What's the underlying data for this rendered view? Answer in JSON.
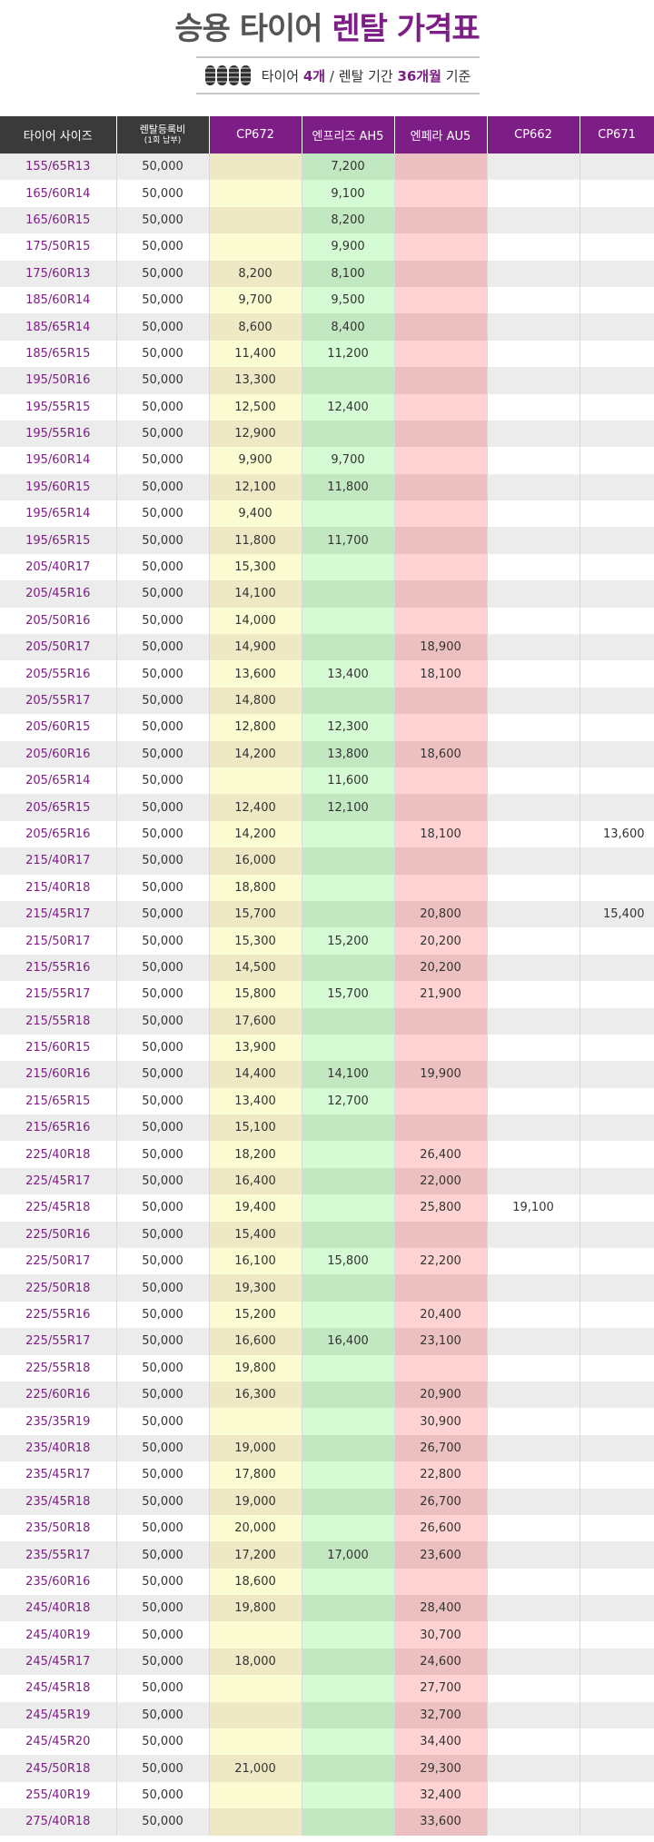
{
  "title": {
    "part1": "승용 타이어 ",
    "part2": "렌탈 가격표"
  },
  "subtitle": {
    "p1": "타이어 ",
    "p2": "4개",
    "p3": " / 렌탈 기간 ",
    "p4": "36개월",
    "p5": " 기준"
  },
  "icons": {
    "tires": "four-tires-icon"
  },
  "colors": {
    "accent": "#7d1d86",
    "header_dark": "#3a3a3a"
  },
  "table": {
    "headers": {
      "size": "타이어 사이즈",
      "reg_line1": "렌탈등록비",
      "reg_line2": "(1회 납부)",
      "cp672": "CP672",
      "ah5": "엔프리즈 AH5",
      "au5": "엔페라 AU5",
      "cp662": "CP662",
      "cp671": "CP671"
    },
    "rows": [
      [
        "155/65R13",
        "50,000",
        "",
        "7,200",
        "",
        "",
        ""
      ],
      [
        "165/60R14",
        "50,000",
        "",
        "9,100",
        "",
        "",
        ""
      ],
      [
        "165/60R15",
        "50,000",
        "",
        "8,200",
        "",
        "",
        ""
      ],
      [
        "175/50R15",
        "50,000",
        "",
        "9,900",
        "",
        "",
        ""
      ],
      [
        "175/60R13",
        "50,000",
        "8,200",
        "8,100",
        "",
        "",
        ""
      ],
      [
        "185/60R14",
        "50,000",
        "9,700",
        "9,500",
        "",
        "",
        ""
      ],
      [
        "185/65R14",
        "50,000",
        "8,600",
        "8,400",
        "",
        "",
        ""
      ],
      [
        "185/65R15",
        "50,000",
        "11,400",
        "11,200",
        "",
        "",
        ""
      ],
      [
        "195/50R16",
        "50,000",
        "13,300",
        "",
        "",
        "",
        ""
      ],
      [
        "195/55R15",
        "50,000",
        "12,500",
        "12,400",
        "",
        "",
        ""
      ],
      [
        "195/55R16",
        "50,000",
        "12,900",
        "",
        "",
        "",
        ""
      ],
      [
        "195/60R14",
        "50,000",
        "9,900",
        "9,700",
        "",
        "",
        ""
      ],
      [
        "195/60R15",
        "50,000",
        "12,100",
        "11,800",
        "",
        "",
        ""
      ],
      [
        "195/65R14",
        "50,000",
        "9,400",
        "",
        "",
        "",
        ""
      ],
      [
        "195/65R15",
        "50,000",
        "11,800",
        "11,700",
        "",
        "",
        ""
      ],
      [
        "205/40R17",
        "50,000",
        "15,300",
        "",
        "",
        "",
        ""
      ],
      [
        "205/45R16",
        "50,000",
        "14,100",
        "",
        "",
        "",
        ""
      ],
      [
        "205/50R16",
        "50,000",
        "14,000",
        "",
        "",
        "",
        ""
      ],
      [
        "205/50R17",
        "50,000",
        "14,900",
        "",
        "18,900",
        "",
        ""
      ],
      [
        "205/55R16",
        "50,000",
        "13,600",
        "13,400",
        "18,100",
        "",
        ""
      ],
      [
        "205/55R17",
        "50,000",
        "14,800",
        "",
        "",
        "",
        ""
      ],
      [
        "205/60R15",
        "50,000",
        "12,800",
        "12,300",
        "",
        "",
        ""
      ],
      [
        "205/60R16",
        "50,000",
        "14,200",
        "13,800",
        "18,600",
        "",
        ""
      ],
      [
        "205/65R14",
        "50,000",
        "",
        "11,600",
        "",
        "",
        ""
      ],
      [
        "205/65R15",
        "50,000",
        "12,400",
        "12,100",
        "",
        "",
        ""
      ],
      [
        "205/65R16",
        "50,000",
        "14,200",
        "",
        "18,100",
        "",
        "13,600"
      ],
      [
        "215/40R17",
        "50,000",
        "16,000",
        "",
        "",
        "",
        ""
      ],
      [
        "215/40R18",
        "50,000",
        "18,800",
        "",
        "",
        "",
        ""
      ],
      [
        "215/45R17",
        "50,000",
        "15,700",
        "",
        "20,800",
        "",
        "15,400"
      ],
      [
        "215/50R17",
        "50,000",
        "15,300",
        "15,200",
        "20,200",
        "",
        ""
      ],
      [
        "215/55R16",
        "50,000",
        "14,500",
        "",
        "20,200",
        "",
        ""
      ],
      [
        "215/55R17",
        "50,000",
        "15,800",
        "15,700",
        "21,900",
        "",
        ""
      ],
      [
        "215/55R18",
        "50,000",
        "17,600",
        "",
        "",
        "",
        ""
      ],
      [
        "215/60R15",
        "50,000",
        "13,900",
        "",
        "",
        "",
        ""
      ],
      [
        "215/60R16",
        "50,000",
        "14,400",
        "14,100",
        "19,900",
        "",
        ""
      ],
      [
        "215/65R15",
        "50,000",
        "13,400",
        "12,700",
        "",
        "",
        ""
      ],
      [
        "215/65R16",
        "50,000",
        "15,100",
        "",
        "",
        "",
        ""
      ],
      [
        "225/40R18",
        "50,000",
        "18,200",
        "",
        "26,400",
        "",
        ""
      ],
      [
        "225/45R17",
        "50,000",
        "16,400",
        "",
        "22,000",
        "",
        ""
      ],
      [
        "225/45R18",
        "50,000",
        "19,400",
        "",
        "25,800",
        "19,100",
        ""
      ],
      [
        "225/50R16",
        "50,000",
        "15,400",
        "",
        "",
        "",
        ""
      ],
      [
        "225/50R17",
        "50,000",
        "16,100",
        "15,800",
        "22,200",
        "",
        ""
      ],
      [
        "225/50R18",
        "50,000",
        "19,300",
        "",
        "",
        "",
        ""
      ],
      [
        "225/55R16",
        "50,000",
        "15,200",
        "",
        "20,400",
        "",
        ""
      ],
      [
        "225/55R17",
        "50,000",
        "16,600",
        "16,400",
        "23,100",
        "",
        ""
      ],
      [
        "225/55R18",
        "50,000",
        "19,800",
        "",
        "",
        "",
        ""
      ],
      [
        "225/60R16",
        "50,000",
        "16,300",
        "",
        "20,900",
        "",
        ""
      ],
      [
        "235/35R19",
        "50,000",
        "",
        "",
        "30,900",
        "",
        ""
      ],
      [
        "235/40R18",
        "50,000",
        "19,000",
        "",
        "26,700",
        "",
        ""
      ],
      [
        "235/45R17",
        "50,000",
        "17,800",
        "",
        "22,800",
        "",
        ""
      ],
      [
        "235/45R18",
        "50,000",
        "19,000",
        "",
        "26,700",
        "",
        ""
      ],
      [
        "235/50R18",
        "50,000",
        "20,000",
        "",
        "26,600",
        "",
        ""
      ],
      [
        "235/55R17",
        "50,000",
        "17,200",
        "17,000",
        "23,600",
        "",
        ""
      ],
      [
        "235/60R16",
        "50,000",
        "18,600",
        "",
        "",
        "",
        ""
      ],
      [
        "245/40R18",
        "50,000",
        "19,800",
        "",
        "28,400",
        "",
        ""
      ],
      [
        "245/40R19",
        "50,000",
        "",
        "",
        "30,700",
        "",
        ""
      ],
      [
        "245/45R17",
        "50,000",
        "18,000",
        "",
        "24,600",
        "",
        ""
      ],
      [
        "245/45R18",
        "50,000",
        "",
        "",
        "27,700",
        "",
        ""
      ],
      [
        "245/45R19",
        "50,000",
        "",
        "",
        "32,700",
        "",
        ""
      ],
      [
        "245/45R20",
        "50,000",
        "",
        "",
        "34,400",
        "",
        ""
      ],
      [
        "245/50R18",
        "50,000",
        "21,000",
        "",
        "29,300",
        "",
        ""
      ],
      [
        "255/40R19",
        "50,000",
        "",
        "",
        "32,400",
        "",
        ""
      ],
      [
        "275/40R18",
        "50,000",
        "",
        "",
        "33,600",
        "",
        ""
      ]
    ]
  }
}
